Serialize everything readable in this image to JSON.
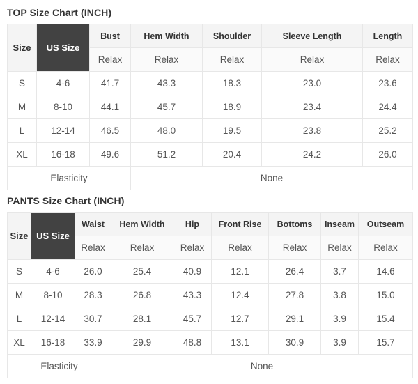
{
  "page": {
    "tables": [
      {
        "title": "TOP Size Chart (INCH)",
        "size_header": "Size",
        "us_size_header": "US Size",
        "fit_label": "Relax",
        "measure_columns": [
          "Bust",
          "Hem Width",
          "Shoulder",
          "Sleeve Length",
          "Length"
        ],
        "rows": [
          {
            "size": "S",
            "us_size": "4-6",
            "values": [
              "41.7",
              "43.3",
              "18.3",
              "23.0",
              "23.6"
            ]
          },
          {
            "size": "M",
            "us_size": "8-10",
            "values": [
              "44.1",
              "45.7",
              "18.9",
              "23.4",
              "24.4"
            ]
          },
          {
            "size": "L",
            "us_size": "12-14",
            "values": [
              "46.5",
              "48.0",
              "19.5",
              "23.8",
              "25.2"
            ]
          },
          {
            "size": "XL",
            "us_size": "16-18",
            "values": [
              "49.6",
              "51.2",
              "20.4",
              "24.2",
              "26.0"
            ]
          }
        ],
        "footer": {
          "label": "Elasticity",
          "value": "None",
          "label_colspan": 3
        }
      },
      {
        "title": "PANTS Size Chart (INCH)",
        "size_header": "Size",
        "us_size_header": "US Size",
        "fit_label": "Relax",
        "measure_columns": [
          "Waist",
          "Hem Width",
          "Hip",
          "Front Rise",
          "Bottoms",
          "Inseam",
          "Outseam"
        ],
        "rows": [
          {
            "size": "S",
            "us_size": "4-6",
            "values": [
              "26.0",
              "25.4",
              "40.9",
              "12.1",
              "26.4",
              "3.7",
              "14.6"
            ]
          },
          {
            "size": "M",
            "us_size": "8-10",
            "values": [
              "28.3",
              "26.8",
              "43.3",
              "12.4",
              "27.8",
              "3.8",
              "15.0"
            ]
          },
          {
            "size": "L",
            "us_size": "12-14",
            "values": [
              "30.7",
              "28.1",
              "45.7",
              "12.7",
              "29.1",
              "3.9",
              "15.4"
            ]
          },
          {
            "size": "XL",
            "us_size": "16-18",
            "values": [
              "33.9",
              "29.9",
              "48.8",
              "13.1",
              "30.9",
              "3.9",
              "15.7"
            ]
          }
        ],
        "footer": {
          "label": "Elasticity",
          "value": "None",
          "label_colspan": 3
        }
      }
    ]
  },
  "colors": {
    "highlight_column_bg": "#424242",
    "highlight_column_text": "#ffffff",
    "header_row_bg": "#f4f4f4",
    "relax_row_bg": "#fafafa",
    "border": "#e7e7e7",
    "heading_text": "#333333",
    "cell_text": "#555555"
  }
}
